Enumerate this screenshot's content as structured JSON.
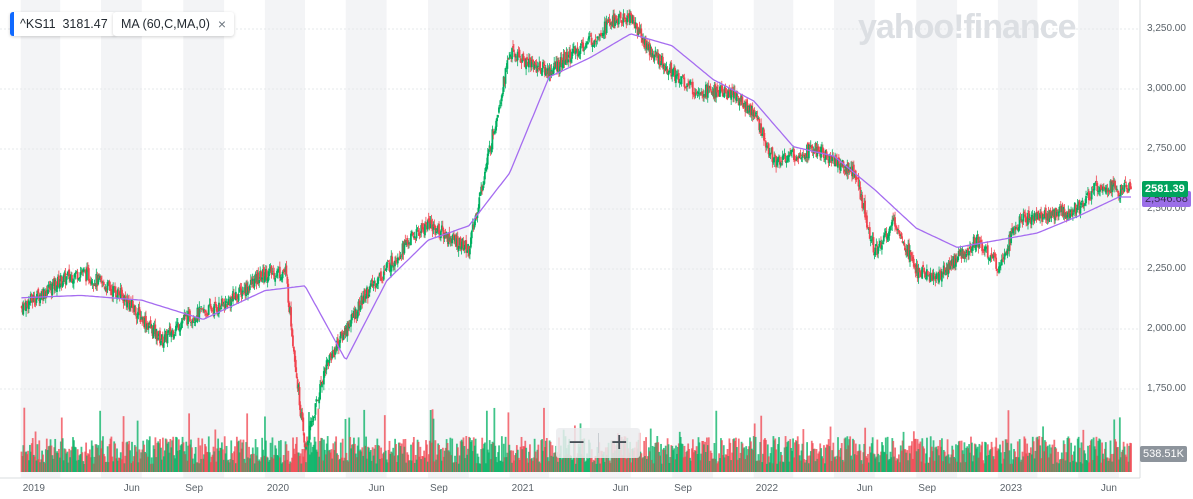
{
  "legend": {
    "symbol": "^KS11",
    "price": "3181.47",
    "indicator": "MA (60,C,MA,0)",
    "close_symbol": "×"
  },
  "watermark": "yahoo!finance",
  "zoom": {
    "minus": "−",
    "plus": "+"
  },
  "tags": {
    "last_price": "2581.39",
    "ma_value": "2,546.68",
    "volume": "538.51K"
  },
  "colors": {
    "up": "#00b061",
    "down": "#f0434e",
    "ma_line": "#a56cf0",
    "band": "#f3f4f6",
    "price_tag": "#00a35c"
  },
  "chart_data": {
    "type": "candlestick",
    "title": "",
    "series": [
      {
        "name": "^KS11",
        "kind": "close",
        "x": [
          "2019-01",
          "2019-03",
          "2019-04",
          "2019-06",
          "2019-08",
          "2019-09",
          "2019-11",
          "2020-01",
          "2020-02",
          "2020-03",
          "2020-04",
          "2020-06",
          "2020-08",
          "2020-09",
          "2020-11",
          "2021-01",
          "2021-03",
          "2021-05",
          "2021-06",
          "2021-07",
          "2021-08",
          "2021-10",
          "2021-12",
          "2022-01",
          "2022-02",
          "2022-04",
          "2022-06",
          "2022-07",
          "2022-08",
          "2022-09",
          "2022-10",
          "2022-12",
          "2023-01",
          "2023-02",
          "2023-04",
          "2023-05",
          "2023-06",
          "2023-07"
        ],
        "values": [
          2090,
          2200,
          2240,
          2140,
          1950,
          2040,
          2100,
          2230,
          2240,
          1490,
          1850,
          2150,
          2360,
          2440,
          2330,
          3150,
          3070,
          3200,
          3280,
          3300,
          3150,
          3000,
          2980,
          2900,
          2700,
          2750,
          2650,
          2320,
          2450,
          2240,
          2210,
          2370,
          2260,
          2450,
          2480,
          2500,
          2600,
          2580
        ]
      },
      {
        "name": "MA (60,C,MA,0)",
        "kind": "ma",
        "x": [
          "2019-01",
          "2019-04",
          "2019-07",
          "2019-10",
          "2020-01",
          "2020-03",
          "2020-05",
          "2020-07",
          "2020-09",
          "2020-11",
          "2021-01",
          "2021-03",
          "2021-05",
          "2021-07",
          "2021-09",
          "2021-11",
          "2022-01",
          "2022-03",
          "2022-05",
          "2022-07",
          "2022-09",
          "2022-11",
          "2023-01",
          "2023-03",
          "2023-05",
          "2023-07"
        ],
        "values": [
          2130,
          2140,
          2120,
          2040,
          2160,
          2180,
          1870,
          2200,
          2370,
          2430,
          2650,
          3050,
          3130,
          3230,
          3180,
          3040,
          2950,
          2760,
          2720,
          2580,
          2420,
          2340,
          2370,
          2400,
          2470,
          2550
        ]
      }
    ],
    "volume_note": "volume bars shown along bottom",
    "ylim": [
      1600,
      3300
    ],
    "y_ticks": [
      "3,250.00",
      "3,000.00",
      "2,750.00",
      "2,500.00",
      "2,250.00",
      "2,000.00",
      "1,750.00"
    ],
    "y_tick_values": [
      3250,
      3000,
      2750,
      2500,
      2250,
      2000,
      1750
    ],
    "x_ticks": [
      "2019",
      "Jun",
      "Sep",
      "2020",
      "Jun",
      "Sep",
      "2021",
      "Jun",
      "Sep",
      "2022",
      "Jun",
      "Sep",
      "2023",
      "Jun"
    ],
    "x_tick_dates": [
      "2019-01",
      "2019-06",
      "2019-09",
      "2020-01",
      "2020-06",
      "2020-09",
      "2021-01",
      "2021-06",
      "2021-09",
      "2022-01",
      "2022-06",
      "2022-09",
      "2023-01",
      "2023-06"
    ],
    "grid": true,
    "y_axis_side": "right"
  }
}
